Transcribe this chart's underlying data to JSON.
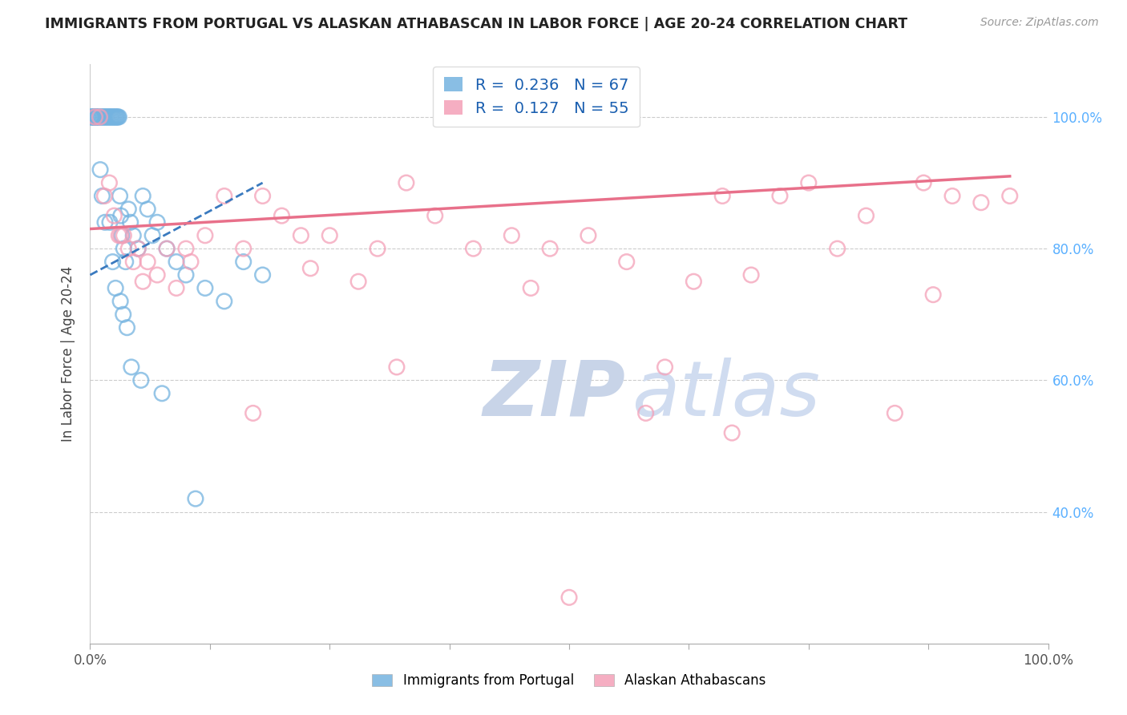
{
  "title": "IMMIGRANTS FROM PORTUGAL VS ALASKAN ATHABASCAN IN LABOR FORCE | AGE 20-24 CORRELATION CHART",
  "source": "Source: ZipAtlas.com",
  "ylabel": "In Labor Force | Age 20-24",
  "legend_blue_R": "0.236",
  "legend_blue_N": "67",
  "legend_pink_R": "0.127",
  "legend_pink_N": "55",
  "legend_blue_label": "Immigrants from Portugal",
  "legend_pink_label": "Alaskan Athabascans",
  "blue_color": "#74b3e0",
  "pink_color": "#f4a0b8",
  "blue_line_color": "#3a7abf",
  "pink_line_color": "#e8708a",
  "background_color": "#ffffff",
  "grid_color": "#cccccc",
  "right_axis_color": "#5ab0ff",
  "blue_scatter_x": [
    0.1,
    0.2,
    0.3,
    0.4,
    0.5,
    0.6,
    0.7,
    0.8,
    0.9,
    1.0,
    1.1,
    1.2,
    1.3,
    1.4,
    1.5,
    1.6,
    1.7,
    1.8,
    1.9,
    2.0,
    2.1,
    2.2,
    2.3,
    2.4,
    2.5,
    2.6,
    2.7,
    2.8,
    2.9,
    3.0,
    3.1,
    3.2,
    3.3,
    3.5,
    3.7,
    4.0,
    4.2,
    4.5,
    5.0,
    5.5,
    6.0,
    6.5,
    7.0,
    8.0,
    9.0,
    10.0,
    12.0,
    14.0,
    16.0,
    18.0,
    0.15,
    0.35,
    0.55,
    0.75,
    1.05,
    1.25,
    1.55,
    2.05,
    2.35,
    2.65,
    3.15,
    3.45,
    3.85,
    4.3,
    5.3,
    7.5,
    11.0
  ],
  "blue_scatter_y": [
    100.0,
    100.0,
    100.0,
    100.0,
    100.0,
    100.0,
    100.0,
    100.0,
    100.0,
    100.0,
    100.0,
    100.0,
    100.0,
    100.0,
    100.0,
    100.0,
    100.0,
    100.0,
    100.0,
    100.0,
    100.0,
    100.0,
    100.0,
    100.0,
    100.0,
    100.0,
    100.0,
    100.0,
    100.0,
    100.0,
    88.0,
    85.0,
    82.0,
    80.0,
    78.0,
    86.0,
    84.0,
    82.0,
    80.0,
    88.0,
    86.0,
    82.0,
    84.0,
    80.0,
    78.0,
    76.0,
    74.0,
    72.0,
    78.0,
    76.0,
    100.0,
    100.0,
    100.0,
    100.0,
    92.0,
    88.0,
    84.0,
    84.0,
    78.0,
    74.0,
    72.0,
    70.0,
    68.0,
    62.0,
    60.0,
    58.0,
    42.0
  ],
  "pink_scatter_x": [
    0.5,
    1.0,
    1.5,
    2.0,
    2.5,
    3.0,
    3.5,
    4.0,
    4.5,
    5.0,
    6.0,
    7.0,
    8.0,
    9.0,
    10.0,
    12.0,
    14.0,
    16.0,
    18.0,
    20.0,
    22.0,
    25.0,
    28.0,
    30.0,
    33.0,
    36.0,
    40.0,
    44.0,
    48.0,
    52.0,
    56.0,
    60.0,
    63.0,
    66.0,
    69.0,
    72.0,
    75.0,
    78.0,
    81.0,
    84.0,
    87.0,
    90.0,
    93.0,
    96.0,
    3.2,
    5.5,
    10.5,
    17.0,
    23.0,
    32.0,
    46.0,
    58.0,
    67.0,
    88.0,
    50.0
  ],
  "pink_scatter_y": [
    100.0,
    100.0,
    88.0,
    90.0,
    85.0,
    82.0,
    82.0,
    80.0,
    78.0,
    80.0,
    78.0,
    76.0,
    80.0,
    74.0,
    80.0,
    82.0,
    88.0,
    80.0,
    88.0,
    85.0,
    82.0,
    82.0,
    75.0,
    80.0,
    90.0,
    85.0,
    80.0,
    82.0,
    80.0,
    82.0,
    78.0,
    62.0,
    75.0,
    88.0,
    76.0,
    88.0,
    90.0,
    80.0,
    85.0,
    55.0,
    90.0,
    88.0,
    87.0,
    88.0,
    82.0,
    75.0,
    78.0,
    55.0,
    77.0,
    62.0,
    74.0,
    55.0,
    52.0,
    73.0,
    27.0
  ],
  "xlim": [
    0,
    100
  ],
  "ylim": [
    20,
    108
  ],
  "yticks": [
    40,
    60,
    80,
    100
  ],
  "ytick_labels": [
    "40.0%",
    "60.0%",
    "80.0%",
    "100.0%"
  ],
  "blue_reg_x0": 0.0,
  "blue_reg_y0": 76.0,
  "blue_reg_x1": 18.0,
  "blue_reg_y1": 90.0,
  "pink_reg_x0": 0.0,
  "pink_reg_y0": 83.0,
  "pink_reg_x1": 96.0,
  "pink_reg_y1": 91.0
}
